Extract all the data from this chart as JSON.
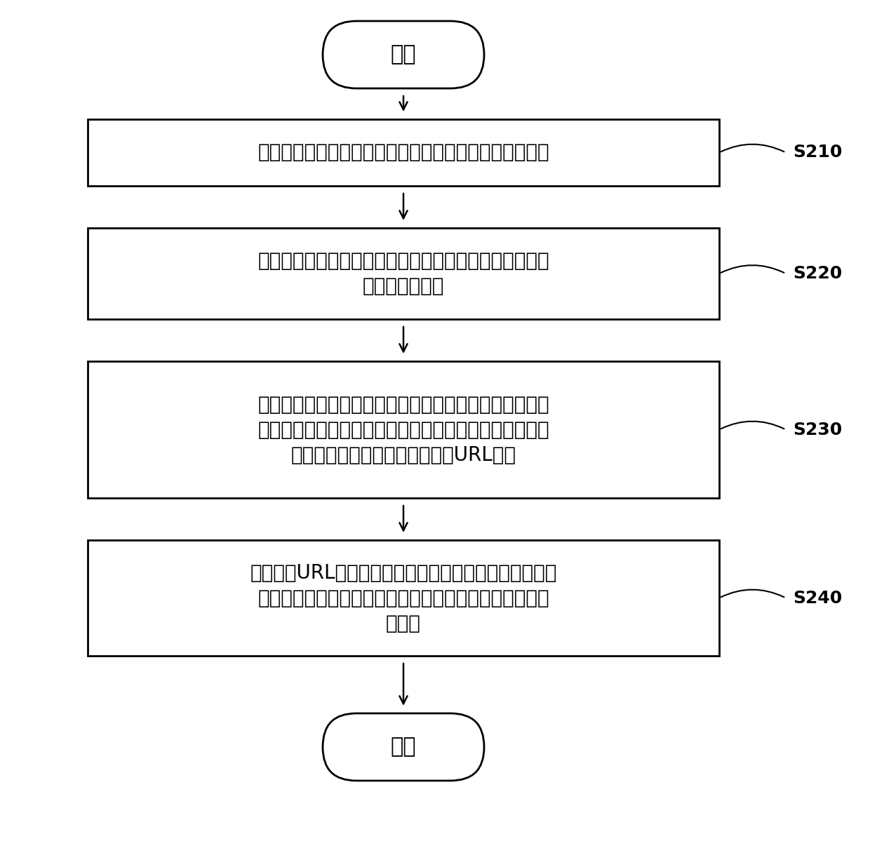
{
  "bg_color": "#ffffff",
  "line_color": "#000000",
  "text_color": "#000000",
  "start_end_text": [
    "开始",
    "结束"
  ],
  "box1_lines": [
    "响应资源类型的建立指令，建立脸部特效资源的资源类型"
  ],
  "box2_lines": [
    "响应触发下载活动项的建立指令，建立该资源类型对应的",
    "触发下载活动项"
  ],
  "box3_lines": [
    "响应脸部特效资源的上传指令，将对应的脸部特效资源上",
    "传到服务器中对应的文件夹中，以便所述服务器根据上传",
    "的所述脸部特效资源返回对应的URL字段"
  ],
  "box4_lines": [
    "基于所述URL字段、所述资源类型以及所述触发下载活动",
    "项生成静态资源文件，并将所述静态资源文件发送给所述",
    "服务器"
  ],
  "labels": [
    "S210",
    "S220",
    "S230",
    "S240"
  ],
  "fig_width": 12.4,
  "fig_height": 11.99,
  "dpi": 100
}
